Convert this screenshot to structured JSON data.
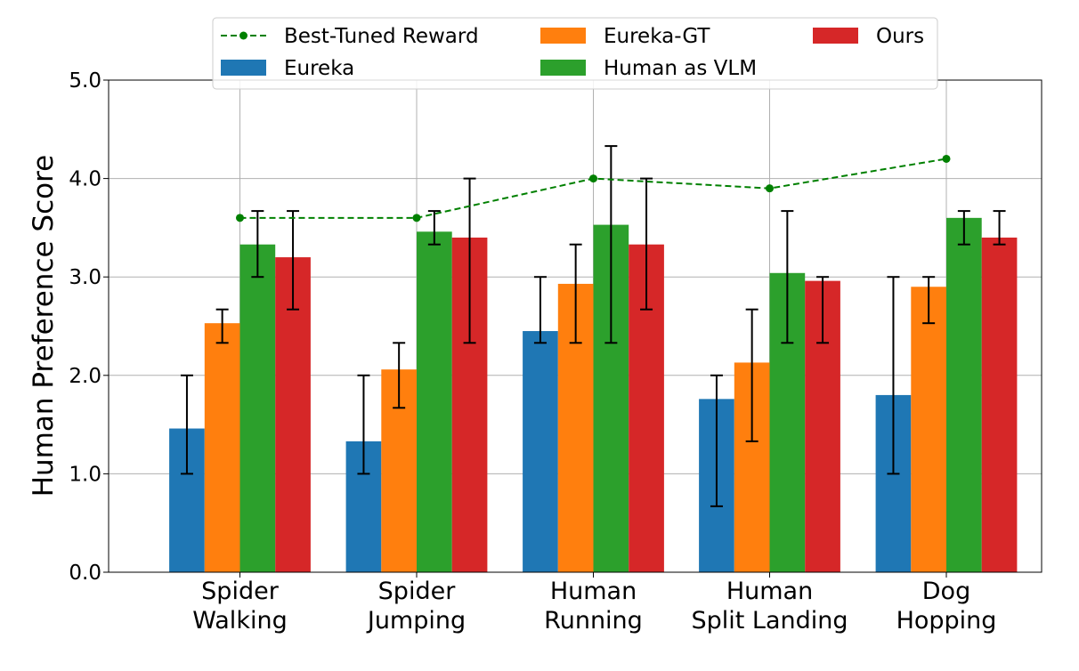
{
  "chart_data": {
    "type": "bar",
    "title": "",
    "xlabel": "",
    "ylabel": "Human Preference Score",
    "ylim": [
      0,
      5
    ],
    "yticks": [
      "0.0",
      "1.0",
      "2.0",
      "3.0",
      "4.0",
      "5.0"
    ],
    "grid": true,
    "legend_position": "top-center",
    "categories": [
      [
        "Spider",
        "Walking"
      ],
      [
        "Spider",
        "Jumping"
      ],
      [
        "Human",
        "Running"
      ],
      [
        "Human",
        "Split Landing"
      ],
      [
        "Dog",
        "Hopping"
      ]
    ],
    "series": [
      {
        "name": "Eureka",
        "color": "#1f77b4",
        "values": [
          1.46,
          1.33,
          2.45,
          1.76,
          1.8
        ],
        "err_low": [
          1.0,
          1.0,
          2.33,
          0.67,
          1.0
        ],
        "err_high": [
          2.0,
          2.0,
          3.0,
          2.0,
          3.0
        ]
      },
      {
        "name": "Eureka-GT",
        "color": "#ff7f0e",
        "values": [
          2.53,
          2.06,
          2.93,
          2.13,
          2.9
        ],
        "err_low": [
          2.33,
          1.67,
          2.33,
          1.33,
          2.53
        ],
        "err_high": [
          2.67,
          2.33,
          3.33,
          2.67,
          3.0
        ]
      },
      {
        "name": "Human as VLM",
        "color": "#2ca02c",
        "values": [
          3.33,
          3.46,
          3.53,
          3.04,
          3.6
        ],
        "err_low": [
          3.0,
          3.33,
          2.33,
          2.33,
          3.33
        ],
        "err_high": [
          3.67,
          3.67,
          4.33,
          3.67,
          3.67
        ]
      },
      {
        "name": "Ours",
        "color": "#d62728",
        "values": [
          3.2,
          3.4,
          3.33,
          2.96,
          3.4
        ],
        "err_low": [
          2.67,
          2.33,
          2.67,
          2.33,
          3.33
        ],
        "err_high": [
          3.67,
          4.0,
          4.0,
          3.0,
          3.67
        ]
      }
    ],
    "line": {
      "name": "Best-Tuned Reward",
      "color": "#008000",
      "values": [
        3.6,
        3.6,
        4.0,
        3.9,
        4.2
      ]
    },
    "legend": [
      {
        "label": "Best-Tuned Reward",
        "kind": "line",
        "color": "#008000"
      },
      {
        "label": "Eureka-GT",
        "kind": "patch",
        "color": "#ff7f0e"
      },
      {
        "label": "Ours",
        "kind": "patch",
        "color": "#d62728"
      },
      {
        "label": "Eureka",
        "kind": "patch",
        "color": "#1f77b4"
      },
      {
        "label": "Human as VLM",
        "kind": "patch",
        "color": "#2ca02c"
      }
    ]
  }
}
